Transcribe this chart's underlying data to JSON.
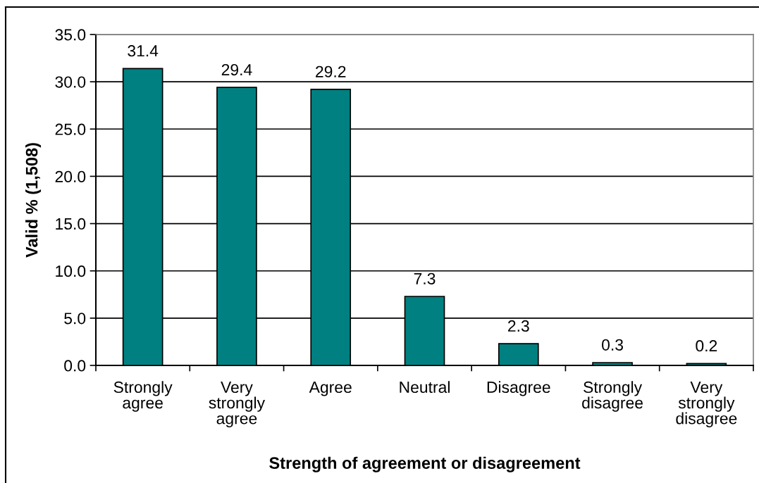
{
  "chart_data": {
    "type": "bar",
    "xlabel": "Strength of agreement or disagreement",
    "ylabel": "Valid % (1,508)",
    "categories": [
      "Strongly agree",
      "Very strongly agree",
      "Agree",
      "Neutral",
      "Disagree",
      "Strongly disagree",
      "Very strongly disagree"
    ],
    "values": [
      31.4,
      29.4,
      29.2,
      7.3,
      2.3,
      0.3,
      0.2
    ],
    "color": "#008080",
    "ylim": [
      0,
      35
    ],
    "yticks": [
      {
        "value": 0,
        "label": "0.0"
      },
      {
        "value": 5,
        "label": "5.0"
      },
      {
        "value": 10,
        "label": "10.0"
      },
      {
        "value": 15,
        "label": "15.0"
      },
      {
        "value": 20,
        "label": "20.0"
      },
      {
        "value": 25,
        "label": "25.0"
      },
      {
        "value": 30,
        "label": "30.0"
      },
      {
        "value": 35,
        "label": "35.0"
      }
    ],
    "grid": "y",
    "data_labels": true
  }
}
